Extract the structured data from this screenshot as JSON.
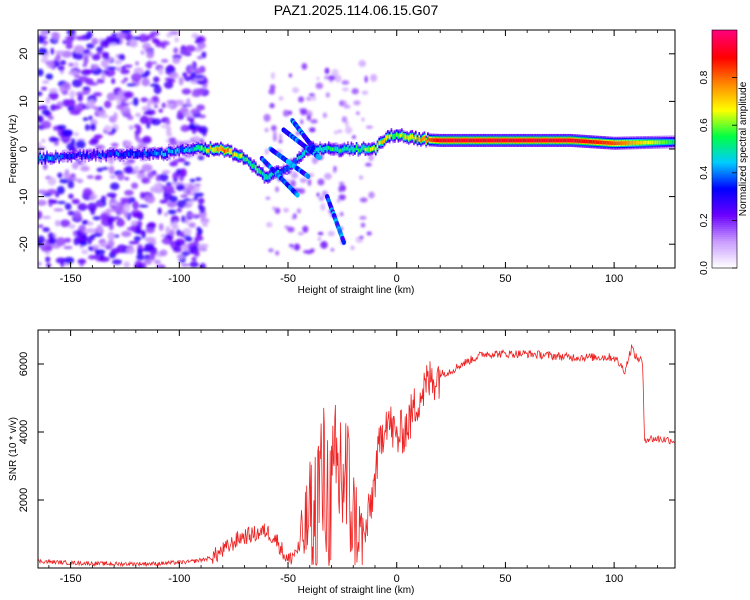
{
  "title": "PAZ1.2025.114.06.15.G07",
  "chart_data": [
    {
      "type": "heatmap",
      "title": "PAZ1.2025.114.06.15.G07",
      "xlabel": "Height of straight line (km)",
      "ylabel": "Frequency (Hz)",
      "xlim": [
        -165,
        128
      ],
      "ylim": [
        -25,
        25
      ],
      "xticks": [
        -150,
        -100,
        -50,
        0,
        50,
        100
      ],
      "yticks": [
        -20,
        -10,
        0,
        10,
        20
      ],
      "colorbar": {
        "label": "Normalized spectral amplitude",
        "range": [
          0,
          1
        ],
        "ticks": [
          0.0,
          0.2,
          0.4,
          0.6,
          0.8
        ],
        "colormap": [
          "#ffffff",
          "#c99bff",
          "#6a00ff",
          "#0000ff",
          "#00ccff",
          "#00ff44",
          "#ffff00",
          "#ff8800",
          "#ff0000",
          "#ff0077"
        ]
      },
      "ridge": [
        {
          "x": -165,
          "y": -2,
          "amp": 0.45
        },
        {
          "x": -150,
          "y": -1.5,
          "amp": 0.3
        },
        {
          "x": -130,
          "y": -1,
          "amp": 0.35
        },
        {
          "x": -110,
          "y": -1,
          "amp": 0.4
        },
        {
          "x": -95,
          "y": 0,
          "amp": 0.45
        },
        {
          "x": -80,
          "y": 0,
          "amp": 0.85
        },
        {
          "x": -70,
          "y": -2,
          "amp": 0.55
        },
        {
          "x": -60,
          "y": -6,
          "amp": 0.55
        },
        {
          "x": -50,
          "y": -4,
          "amp": 0.4
        },
        {
          "x": -40,
          "y": 0,
          "amp": 0.5
        },
        {
          "x": -20,
          "y": 0,
          "amp": 0.55
        },
        {
          "x": -10,
          "y": 0,
          "amp": 0.65
        },
        {
          "x": -5,
          "y": 2.5,
          "amp": 0.7
        },
        {
          "x": 0,
          "y": 3,
          "amp": 0.6
        },
        {
          "x": 10,
          "y": 2,
          "amp": 0.75
        },
        {
          "x": 20,
          "y": 1.8,
          "amp": 0.95
        },
        {
          "x": 50,
          "y": 1.8,
          "amp": 0.95
        },
        {
          "x": 80,
          "y": 1.8,
          "amp": 0.95
        },
        {
          "x": 100,
          "y": 1.2,
          "amp": 0.85
        },
        {
          "x": 128,
          "y": 1.5,
          "amp": 0.55
        }
      ]
    },
    {
      "type": "line",
      "xlabel": "Height of straight line (km)",
      "ylabel": "SNR (10 * v/v)",
      "xlim": [
        -165,
        128
      ],
      "ylim": [
        0,
        7000
      ],
      "xticks": [
        -150,
        -100,
        -50,
        0,
        50,
        100
      ],
      "yticks": [
        2000,
        4000,
        6000
      ],
      "series": [
        {
          "color": "#ee2222",
          "points": [
            [
              -165,
              200
            ],
            [
              -150,
              150
            ],
            [
              -130,
              120
            ],
            [
              -110,
              130
            ],
            [
              -95,
              180
            ],
            [
              -85,
              300
            ],
            [
              -78,
              600
            ],
            [
              -72,
              900
            ],
            [
              -65,
              1000
            ],
            [
              -60,
              1100
            ],
            [
              -55,
              800
            ],
            [
              -50,
              200
            ],
            [
              -45,
              600
            ],
            [
              -40,
              1500
            ],
            [
              -35,
              2500
            ],
            [
              -30,
              2000
            ],
            [
              -25,
              3000
            ],
            [
              -20,
              1500
            ],
            [
              -15,
              800
            ],
            [
              -12,
              1800
            ],
            [
              -8,
              3500
            ],
            [
              -5,
              4500
            ],
            [
              0,
              3800
            ],
            [
              5,
              4200
            ],
            [
              10,
              5000
            ],
            [
              15,
              5500
            ],
            [
              20,
              5700
            ],
            [
              25,
              5800
            ],
            [
              30,
              6000
            ],
            [
              40,
              6300
            ],
            [
              60,
              6300
            ],
            [
              80,
              6200
            ],
            [
              100,
              6200
            ],
            [
              105,
              5800
            ],
            [
              108,
              6500
            ],
            [
              110,
              6200
            ],
            [
              113,
              6100
            ],
            [
              114,
              3800
            ],
            [
              120,
              3800
            ],
            [
              128,
              3750
            ]
          ]
        }
      ]
    }
  ]
}
